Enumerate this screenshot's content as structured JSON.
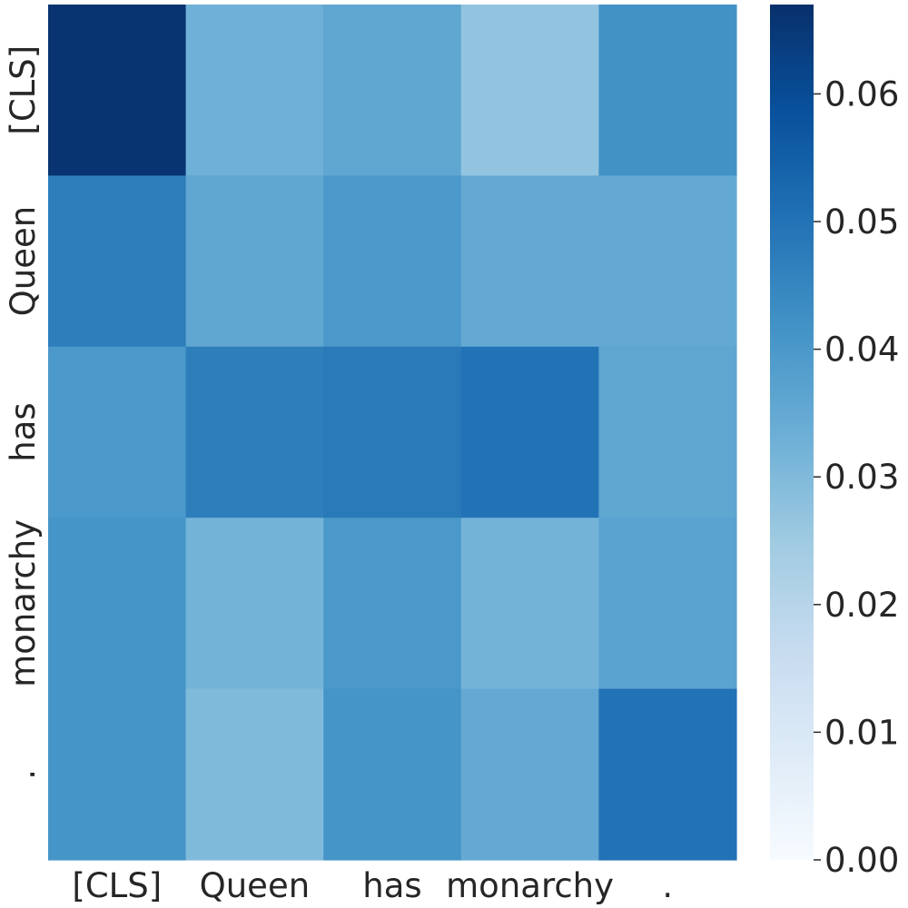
{
  "chart_data": {
    "type": "heatmap",
    "colormap": "Blues",
    "x_labels": [
      "[CLS]",
      "Queen",
      "has",
      "monarchy",
      "."
    ],
    "y_labels": [
      "[CLS]",
      "Queen",
      "has",
      "monarchy",
      "."
    ],
    "values": [
      [
        0.066,
        0.033,
        0.036,
        0.027,
        0.042
      ],
      [
        0.047,
        0.036,
        0.04,
        0.035,
        0.035
      ],
      [
        0.04,
        0.047,
        0.048,
        0.05,
        0.036
      ],
      [
        0.041,
        0.032,
        0.04,
        0.032,
        0.037
      ],
      [
        0.041,
        0.03,
        0.041,
        0.035,
        0.05
      ]
    ],
    "colorbar": {
      "range": [
        0.0,
        0.067
      ],
      "ticks": [
        0.0,
        0.01,
        0.02,
        0.03,
        0.04,
        0.05,
        0.06
      ],
      "tick_labels": [
        "0.00",
        "0.01",
        "0.02",
        "0.03",
        "0.04",
        "0.05",
        "0.06"
      ]
    }
  }
}
